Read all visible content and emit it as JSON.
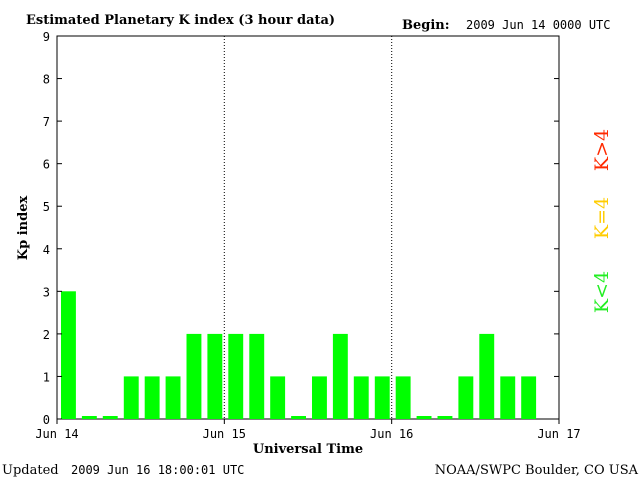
{
  "header": {
    "title": "Estimated Planetary K index (3 hour data)",
    "begin_label": "Begin:",
    "begin_value": "2009 Jun 14 0000 UTC"
  },
  "footer": {
    "updated_label": "Updated",
    "updated_value": "2009 Jun 16 18:00:01 UTC",
    "credit": "NOAA/SWPC Boulder, CO USA"
  },
  "legend": [
    {
      "label": "K>4",
      "color": "#ff2a00"
    },
    {
      "label": "K=4",
      "color": "#ffcc00"
    },
    {
      "label": "K<4",
      "color": "#22ee22"
    }
  ],
  "chart_data": {
    "type": "bar",
    "title": "Estimated Planetary K index (3 hour data)",
    "xlabel": "Universal Time",
    "ylabel": "Kp index",
    "ylim": [
      0,
      9
    ],
    "yticks": [
      0,
      1,
      2,
      3,
      4,
      5,
      6,
      7,
      8,
      9
    ],
    "x_tick_labels": [
      "Jun 14",
      "Jun 15",
      "Jun 16",
      "Jun 17"
    ],
    "days": 3,
    "slots_per_day": 8,
    "values": [
      3,
      0,
      0,
      1,
      1,
      1,
      2,
      2,
      2,
      2,
      1,
      0,
      1,
      2,
      1,
      1,
      1,
      0,
      0,
      1,
      2,
      1,
      1
    ],
    "bar_color": "#00ff00",
    "day_separators": "dotted",
    "grid": false
  }
}
